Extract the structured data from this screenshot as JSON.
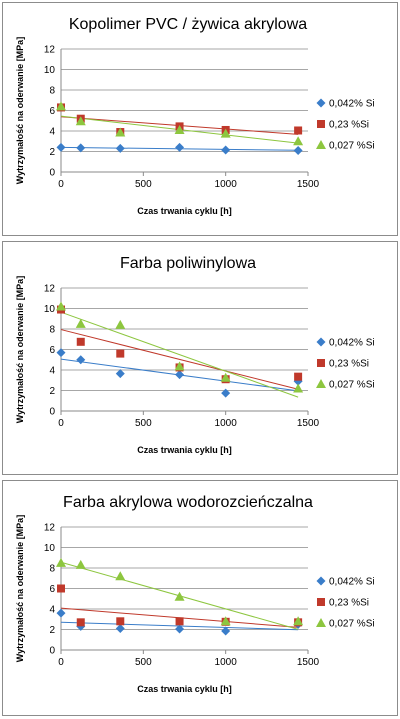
{
  "legend": {
    "placement": "right",
    "series": [
      {
        "name": "0,042% Si",
        "color": "#3a7dc9",
        "marker": "diamond"
      },
      {
        "name": "0,23 %Si",
        "color": "#c0392b",
        "marker": "square"
      },
      {
        "name": "0,027 %Si",
        "color": "#8dc63f",
        "marker": "triangle"
      }
    ]
  },
  "chart_data": [
    {
      "type": "scatter",
      "title": "Kopolimer PVC / żywica akrylowa",
      "xlabel": "Czas trwania cyklu [h]",
      "ylabel": "Wytrzymałość na oderwanie [MPa]",
      "xlim": [
        0,
        1500
      ],
      "ylim": [
        0,
        12
      ],
      "xticks": [
        0,
        500,
        1000,
        1500
      ],
      "yticks": [
        0,
        2,
        4,
        6,
        8,
        10,
        12
      ],
      "grid": true,
      "trendlines": true,
      "series": [
        {
          "name": "0,042% Si",
          "x": [
            0,
            120,
            360,
            720,
            1000,
            1440
          ],
          "y": [
            2.4,
            2.35,
            2.3,
            2.4,
            2.15,
            2.1
          ]
        },
        {
          "name": "0,23 %Si",
          "x": [
            0,
            120,
            360,
            720,
            1000,
            1440
          ],
          "y": [
            6.3,
            5.2,
            3.9,
            4.45,
            4.1,
            4.05
          ]
        },
        {
          "name": "0,027 %Si",
          "x": [
            0,
            120,
            360,
            720,
            1000,
            1440
          ],
          "y": [
            6.4,
            4.95,
            3.85,
            4.1,
            3.75,
            3.0
          ]
        }
      ]
    },
    {
      "type": "scatter",
      "title": "Farba poliwinylowa",
      "xlabel": "Czas trwania cyklu [h]",
      "ylabel": "Wytrzymałość na oderwanie [MPa]",
      "xlim": [
        0,
        1500
      ],
      "ylim": [
        0,
        12
      ],
      "xticks": [
        0,
        500,
        1000,
        1500
      ],
      "yticks": [
        0,
        2,
        4,
        6,
        8,
        10,
        12
      ],
      "grid": true,
      "trendlines": true,
      "series": [
        {
          "name": "0,042% Si",
          "x": [
            0,
            120,
            360,
            720,
            1000,
            1440
          ],
          "y": [
            5.7,
            5.0,
            3.65,
            3.55,
            1.75,
            2.9
          ]
        },
        {
          "name": "0,23 %Si",
          "x": [
            0,
            120,
            360,
            720,
            1000,
            1440
          ],
          "y": [
            9.9,
            6.75,
            5.6,
            4.25,
            3.1,
            3.35
          ]
        },
        {
          "name": "0,027 %Si",
          "x": [
            0,
            120,
            360,
            720,
            1000,
            1440
          ],
          "y": [
            10.2,
            8.5,
            8.4,
            4.35,
            3.25,
            2.2
          ]
        }
      ]
    },
    {
      "type": "scatter",
      "title": "Farba akrylowa wodorozcieńczalna",
      "xlabel": "Czas trwania cyklu [h]",
      "ylabel": "Wytrzymałość na oderwanie [MPa]",
      "xlim": [
        0,
        1500
      ],
      "ylim": [
        0,
        12
      ],
      "xticks": [
        0,
        500,
        1000,
        1500
      ],
      "yticks": [
        0,
        2,
        4,
        6,
        8,
        10,
        12
      ],
      "grid": true,
      "trendlines": true,
      "series": [
        {
          "name": "0,042% Si",
          "x": [
            0,
            120,
            360,
            720,
            1000,
            1440
          ],
          "y": [
            3.6,
            2.3,
            2.1,
            2.05,
            1.85,
            2.5
          ]
        },
        {
          "name": "0,23 %Si",
          "x": [
            0,
            120,
            360,
            720,
            1000,
            1440
          ],
          "y": [
            6.0,
            2.7,
            2.8,
            2.8,
            2.75,
            2.7
          ]
        },
        {
          "name": "0,027 %Si",
          "x": [
            0,
            120,
            360,
            720,
            1000,
            1440
          ],
          "y": [
            8.5,
            8.3,
            7.2,
            5.2,
            2.8,
            2.8
          ]
        }
      ]
    }
  ]
}
